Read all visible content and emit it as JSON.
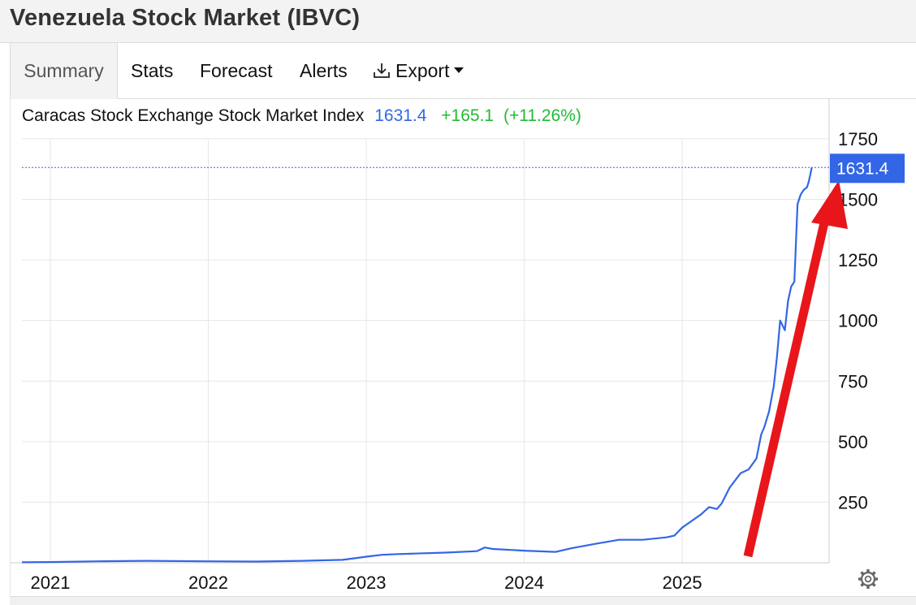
{
  "page": {
    "title": "Venezuela Stock Market (IBVC)"
  },
  "tabs": [
    {
      "label": "Summary",
      "active": true
    },
    {
      "label": "Stats",
      "active": false
    },
    {
      "label": "Forecast",
      "active": false
    },
    {
      "label": "Alerts",
      "active": false
    },
    {
      "label": "Export",
      "active": false,
      "icon": "download-icon",
      "dropdown": true
    }
  ],
  "legend": {
    "name": "Caracas Stock Exchange Stock Market Index",
    "value": "1631.4",
    "change": "+165.1",
    "change_pct": "(+11.26%)"
  },
  "current_price_label": "1631.4",
  "colors": {
    "series": "#3366e6",
    "positive": "#22bb33",
    "annotation_arrow": "#e8161b",
    "price_tag_bg": "#3366e6",
    "grid": "#e6e6e6"
  },
  "chart_data": {
    "type": "line",
    "title": "",
    "xlabel": "",
    "ylabel": "",
    "x_ticks": [
      "2021",
      "2022",
      "2023",
      "2024",
      "2025"
    ],
    "y_ticks": [
      250,
      500,
      750,
      1000,
      1250,
      1500,
      1750
    ],
    "xlim": [
      2020.82,
      2025.93
    ],
    "ylim": [
      0,
      1750
    ],
    "y_axis_position": "right",
    "grid": true,
    "current_value": 1631.4,
    "series": [
      {
        "x": [
          2020.82,
          2021.0,
          2021.3,
          2021.6,
          2022.0,
          2022.3,
          2022.6,
          2022.85,
          2022.92,
          2023.0,
          2023.1,
          2023.2,
          2023.3,
          2023.5,
          2023.7,
          2023.75,
          2023.8,
          2024.0,
          2024.2,
          2024.3,
          2024.45,
          2024.6,
          2024.75,
          2024.9,
          2024.95,
          2025.0,
          2025.05,
          2025.12,
          2025.17,
          2025.22,
          2025.25,
          2025.3,
          2025.37,
          2025.42,
          2025.47,
          2025.5,
          2025.52,
          2025.55,
          2025.58,
          2025.6,
          2025.62,
          2025.65,
          2025.67,
          2025.69,
          2025.71,
          2025.73,
          2025.75,
          2025.77,
          2025.79,
          2025.8,
          2025.81,
          2025.82
        ],
        "values": [
          2,
          3,
          6,
          8,
          6,
          5,
          8,
          12,
          18,
          25,
          33,
          36,
          38,
          42,
          48,
          63,
          57,
          50,
          45,
          60,
          78,
          95,
          95,
          105,
          112,
          145,
          168,
          200,
          230,
          222,
          245,
          310,
          370,
          385,
          430,
          530,
          560,
          625,
          730,
          850,
          1000,
          960,
          1080,
          1140,
          1160,
          1480,
          1520,
          1540,
          1550,
          1570,
          1600,
          1631.4
        ]
      }
    ]
  }
}
